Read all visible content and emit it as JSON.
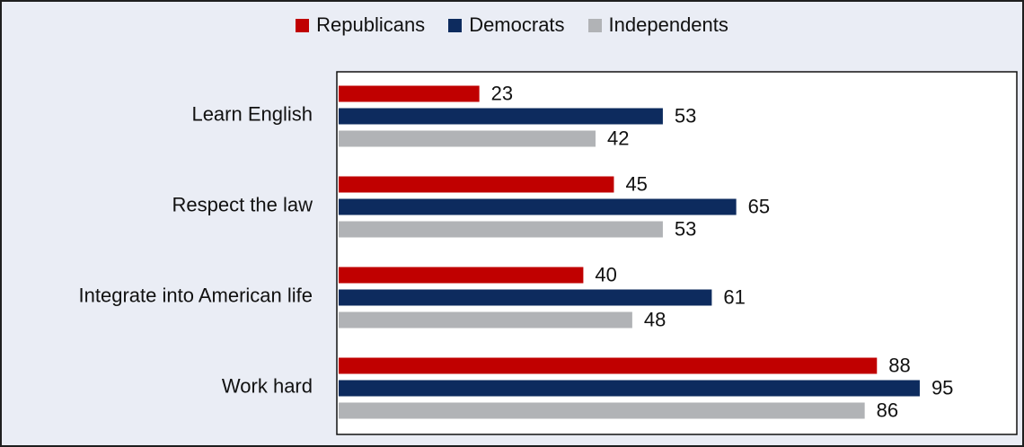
{
  "chart_data": {
    "type": "bar",
    "orientation": "horizontal",
    "title": "",
    "xlabel": "",
    "ylabel": "",
    "xlim": [
      0,
      100
    ],
    "grid": false,
    "legend_placement": "top-center",
    "categories": [
      "Learn English",
      "Respect the law",
      "Integrate into American life",
      "Work hard"
    ],
    "series": [
      {
        "name": "Republicans",
        "color": "#c00000",
        "values": [
          23,
          45,
          40,
          88
        ]
      },
      {
        "name": "Democrats",
        "color": "#0d2b5e",
        "values": [
          53,
          65,
          61,
          95
        ]
      },
      {
        "name": "Independents",
        "color": "#b1b3b6",
        "values": [
          42,
          53,
          48,
          86
        ]
      }
    ]
  }
}
